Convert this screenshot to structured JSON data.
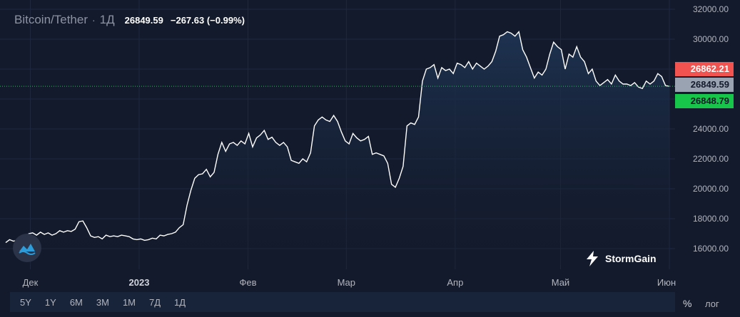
{
  "header": {
    "symbol": "Bitcoin/Tether",
    "separator": "·",
    "timeframe": "1Д",
    "last_price": "26849.59",
    "change": "−267.63 (−0.99%)"
  },
  "price_tags": {
    "high": "26862.21",
    "last": "26849.59",
    "low": "26848.79"
  },
  "colors": {
    "background": "#131a2b",
    "line": "#ffffff",
    "tag_high": "#f05350",
    "tag_last": "#9aa3b1",
    "tag_low": "#17c54a",
    "last_price_line": "#17c54a"
  },
  "range_buttons": [
    "5Y",
    "1Y",
    "6M",
    "3M",
    "1M",
    "7Д",
    "1Д"
  ],
  "scale_buttons": {
    "percent": "%",
    "log": "лог"
  },
  "brand": {
    "name": "StormGain",
    "logo_icon": "lightning-bolt-icon",
    "app_icon": "chart-wave-icon"
  },
  "chart_data": {
    "type": "area",
    "title": "",
    "xlabel": "",
    "ylabel": "",
    "ylim": [
      15000,
      32500
    ],
    "grid": true,
    "yticks": [
      16000,
      18000,
      20000,
      22000,
      24000,
      26000,
      28000,
      30000,
      32000
    ],
    "ytick_labels": [
      "16000.00",
      "18000.00",
      "20000.00",
      "22000.00",
      "24000.00",
      "26000.00",
      "28000.00",
      "30000.00",
      "32000.00"
    ],
    "xticks": [
      {
        "label": "Дек",
        "date": "2022-12-01",
        "bold": false
      },
      {
        "label": "2023",
        "date": "2023-01-01",
        "bold": true
      },
      {
        "label": "Фев",
        "date": "2023-02-01",
        "bold": false
      },
      {
        "label": "Мар",
        "date": "2023-03-01",
        "bold": false
      },
      {
        "label": "Апр",
        "date": "2023-04-01",
        "bold": false
      },
      {
        "label": "Май",
        "date": "2023-05-01",
        "bold": false
      },
      {
        "label": "Июн",
        "date": "2023-06-01",
        "bold": false
      }
    ],
    "x_start": "2022-11-24",
    "x_end": "2023-06-01",
    "last_value": 26849.59,
    "series": [
      {
        "values": [
          16400,
          16600,
          16500,
          16550,
          16450,
          16800,
          17000,
          17050,
          16900,
          17100,
          16950,
          17050,
          16900,
          17000,
          17200,
          17100,
          17200,
          17150,
          17300,
          17800,
          17850,
          17400,
          16850,
          16750,
          16800,
          16650,
          16900,
          16800,
          16850,
          16800,
          16900,
          16850,
          16800,
          16650,
          16600,
          16650,
          16550,
          16600,
          16700,
          16650,
          16900,
          16850,
          16950,
          17000,
          17100,
          17400,
          17600,
          18900,
          19900,
          20700,
          20950,
          21000,
          21300,
          20800,
          21100,
          22300,
          23100,
          22500,
          23000,
          23100,
          22900,
          23200,
          23000,
          23700,
          22800,
          23400,
          23600,
          23900,
          23300,
          23450,
          23100,
          22900,
          23100,
          22800,
          21900,
          21800,
          21700,
          22000,
          21800,
          22400,
          24200,
          24600,
          24800,
          24600,
          24500,
          24900,
          24500,
          23800,
          23200,
          23000,
          23700,
          23400,
          23200,
          23300,
          23500,
          22300,
          22400,
          22300,
          22200,
          21700,
          20300,
          20100,
          20700,
          21500,
          24200,
          24400,
          24300,
          24800,
          27200,
          28000,
          28100,
          28300,
          27400,
          28100,
          27900,
          28000,
          27700,
          28400,
          28300,
          28100,
          28500,
          28000,
          28400,
          28200,
          28000,
          28200,
          28500,
          29200,
          30200,
          30300,
          30500,
          30400,
          30200,
          30500,
          29300,
          28800,
          28100,
          27400,
          27800,
          27600,
          28000,
          29000,
          29800,
          29500,
          29300,
          28000,
          29000,
          28800,
          29500,
          28800,
          28500,
          27700,
          28000,
          27200,
          26900,
          27100,
          27300,
          27000,
          27600,
          27200,
          27000,
          27000,
          26900,
          27100,
          26800,
          26700,
          27200,
          27000,
          27200,
          27700,
          27500,
          26900,
          26849.59
        ]
      }
    ]
  }
}
